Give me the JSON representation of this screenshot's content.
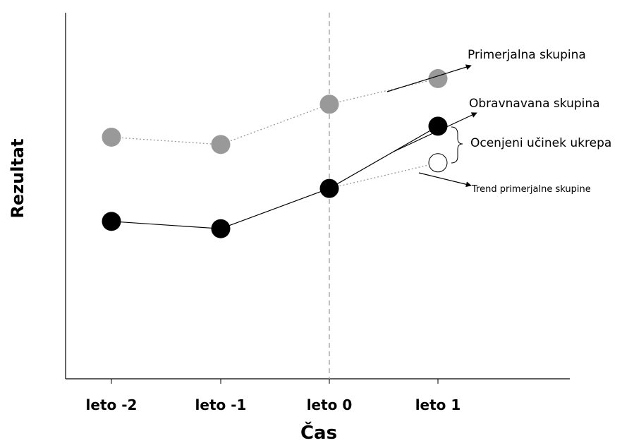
{
  "chart_data": {
    "type": "line",
    "xlabel": "Čas",
    "ylabel": "Rezultat",
    "categories": [
      "leto -2",
      "leto -1",
      "leto 0",
      "leto 1"
    ],
    "ylim": [
      0,
      100
    ],
    "treatment_start": "leto 0",
    "series": [
      {
        "values": [
          66,
          64,
          75,
          82
        ],
        "color": "#999999",
        "marker": "filled-circle",
        "line": "dotted"
      },
      {
        "values": [
          43,
          41,
          52,
          69
        ],
        "color": "#000000",
        "marker": "filled-circle",
        "line": "solid"
      },
      {
        "x": [
          "leto 0",
          "leto 1"
        ],
        "values": [
          52,
          59
        ],
        "color": "#999999",
        "marker": "open-circle",
        "line": "dotted"
      }
    ],
    "annotations": [
      {
        "id": "primerjalna",
        "text": "Primerjalna skupina"
      },
      {
        "id": "obravnavana",
        "text": "Obravnavana skupina"
      },
      {
        "id": "ucinek",
        "text": "Ocenjeni učinek ukrepa"
      },
      {
        "id": "trend",
        "text": "Trend primerjalne skupine"
      }
    ]
  }
}
